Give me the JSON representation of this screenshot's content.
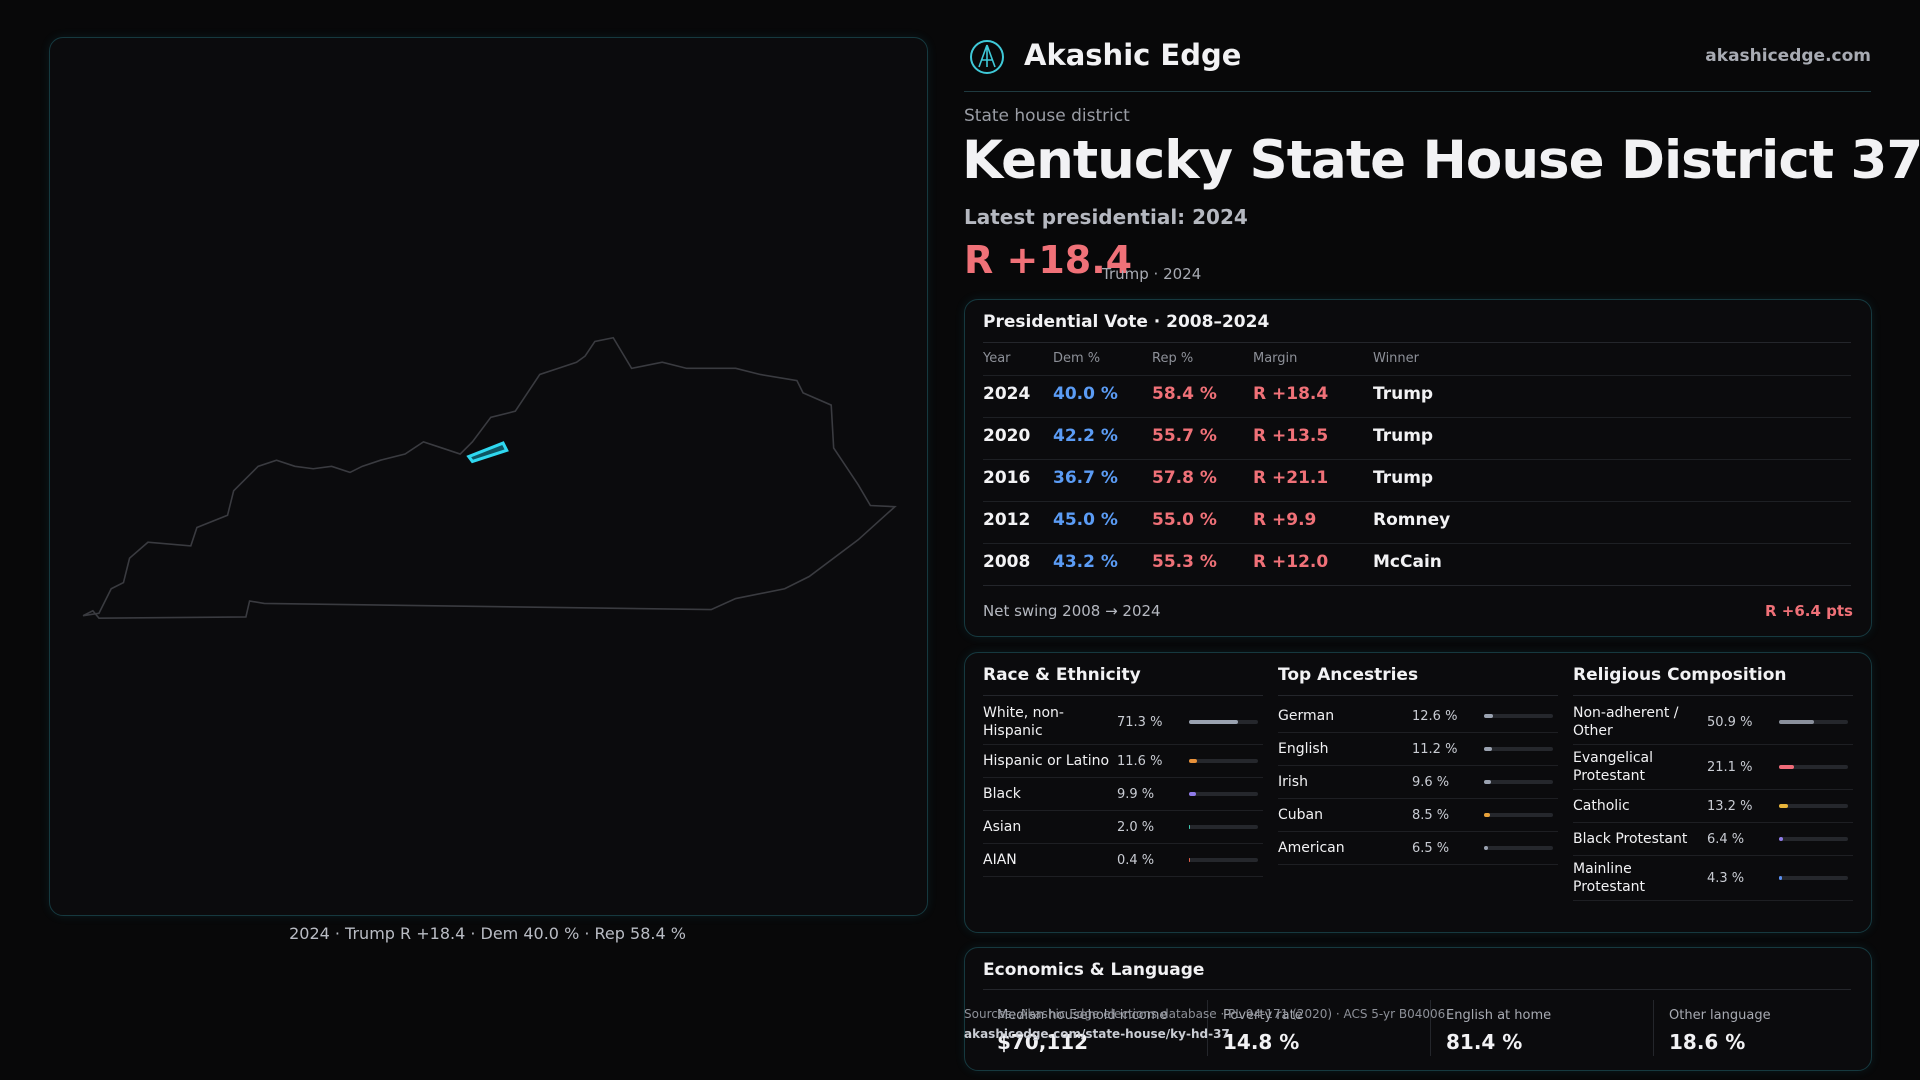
{
  "header": {
    "brand": "Akashic Edge",
    "site": "akashicedge.com"
  },
  "district": {
    "kicker": "State house district",
    "title": "Kentucky State House District 37",
    "latest": "Latest presidential: 2024",
    "margin": "R +18.4",
    "margin_note": "Trump · 2024"
  },
  "map": {
    "caption": "2024 · Trump R +18.4 · Dem 40.0 % · Rep 58.4 %"
  },
  "vote_table": {
    "title": "Presidential Vote · 2008–2024",
    "columns": [
      "Year",
      "Dem %",
      "Rep %",
      "Margin",
      "Winner"
    ],
    "rows": [
      [
        "2024",
        "40.0 %",
        "58.4 %",
        "R +18.4",
        "Trump"
      ],
      [
        "2020",
        "42.2 %",
        "55.7 %",
        "R +13.5",
        "Trump"
      ],
      [
        "2016",
        "36.7 %",
        "57.8 %",
        "R +21.1",
        "Trump"
      ],
      [
        "2012",
        "45.0 %",
        "55.0 %",
        "R +9.9",
        "Romney"
      ],
      [
        "2008",
        "43.2 %",
        "55.3 %",
        "R +12.0",
        "McCain"
      ]
    ],
    "net_swing_label": "Net swing 2008 → 2024",
    "net_swing": "R +6.4 pts"
  },
  "race": {
    "title": "Race & Ethnicity",
    "rows": [
      {
        "name": "White, non-Hispanic",
        "label": "71.3 %",
        "value": 71.3,
        "color": "#9aa2b0"
      },
      {
        "name": "Hispanic or Latino",
        "label": "11.6 %",
        "value": 11.6,
        "color": "#e8913a"
      },
      {
        "name": "Black",
        "label": "9.9 %",
        "value": 9.9,
        "color": "#8f7be8"
      },
      {
        "name": "Asian",
        "label": "2.0 %",
        "value": 2.0,
        "color": "#3fc9b0"
      },
      {
        "name": "AIAN",
        "label": "0.4 %",
        "value": 0.4,
        "color": "#e0604a"
      }
    ]
  },
  "ancestry": {
    "title": "Top Ancestries",
    "rows": [
      {
        "name": "German",
        "label": "12.6 %",
        "value": 12.6,
        "color": "#9aa2b0"
      },
      {
        "name": "English",
        "label": "11.2 %",
        "value": 11.2,
        "color": "#9aa2b0"
      },
      {
        "name": "Irish",
        "label": "9.6 %",
        "value": 9.6,
        "color": "#9aa2b0"
      },
      {
        "name": "Cuban",
        "label": "8.5 %",
        "value": 8.5,
        "color": "#e8a23a"
      },
      {
        "name": "American",
        "label": "6.5 %",
        "value": 6.5,
        "color": "#9aa2b0"
      }
    ]
  },
  "religion": {
    "title": "Religious Composition",
    "rows": [
      {
        "name": "Non-adherent / Other",
        "label": "50.9 %",
        "value": 50.9,
        "color": "#8a909c"
      },
      {
        "name": "Evangelical Protestant",
        "label": "21.1 %",
        "value": 21.1,
        "color": "#f06b78"
      },
      {
        "name": "Catholic",
        "label": "13.2 %",
        "value": 13.2,
        "color": "#e8b43a"
      },
      {
        "name": "Black Protestant",
        "label": "6.4 %",
        "value": 6.4,
        "color": "#8f7be8"
      },
      {
        "name": "Mainline Protestant",
        "label": "4.3 %",
        "value": 4.3,
        "color": "#5b8ff0"
      }
    ]
  },
  "economics": {
    "title": "Economics & Language",
    "items": [
      {
        "name": "Median household income",
        "value": "$70,112"
      },
      {
        "name": "Poverty rate",
        "value": "14.8 %"
      },
      {
        "name": "English at home",
        "value": "81.4 %"
      },
      {
        "name": "Other language",
        "value": "18.6 %"
      }
    ]
  },
  "sources": {
    "text": "Sources: Akashic Edge elections database · PL 94-171 (2020) · ACS 5-yr B04006",
    "url": "akashicedge.com/state-house/ky-hd-37"
  }
}
